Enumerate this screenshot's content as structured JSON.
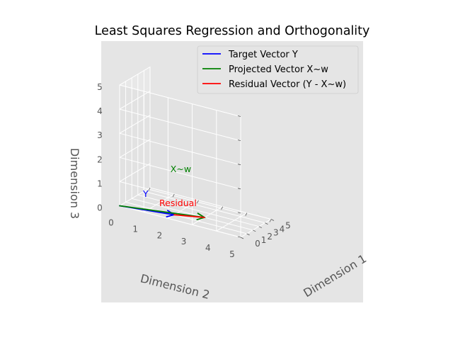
{
  "chart_data": {
    "type": "3d-line",
    "title": "Least Squares Regression and Orthogonality",
    "xlabel": "Dimension 1",
    "ylabel": "Dimension 2",
    "zlabel": "Dimension 3",
    "xlim": [
      0,
      5
    ],
    "ylim": [
      0,
      5
    ],
    "zlim": [
      0,
      5
    ],
    "x_ticks": [
      "0",
      "1",
      "2",
      "3",
      "4",
      "5"
    ],
    "y_ticks": [
      "0",
      "1",
      "2",
      "3",
      "4",
      "5"
    ],
    "z_ticks": [
      "0",
      "1",
      "2",
      "3",
      "4",
      "5"
    ],
    "grid": true,
    "legend_position": "top-right",
    "series": [
      {
        "name": "Target Vector Y",
        "color": "#0000ff",
        "start": [
          0,
          0,
          0
        ],
        "end": [
          1,
          2,
          0
        ]
      },
      {
        "name": "Projected Vector X~w",
        "color": "#008000",
        "start": [
          0,
          0,
          0
        ],
        "end": [
          2,
          3,
          0
        ]
      },
      {
        "name": "Residual Vector (Y - X~w)",
        "color": "#ff0000",
        "start": [
          2,
          3,
          0
        ],
        "end": [
          1,
          2,
          0
        ]
      }
    ],
    "annotations": [
      {
        "text": "Y",
        "color": "#0000ff",
        "at": [
          1,
          2,
          0
        ]
      },
      {
        "text": "X~w",
        "color": "#008000",
        "at": [
          2,
          3,
          0
        ]
      },
      {
        "text": "Residual",
        "color": "#ff0000",
        "at": [
          1,
          2,
          0
        ]
      }
    ]
  }
}
